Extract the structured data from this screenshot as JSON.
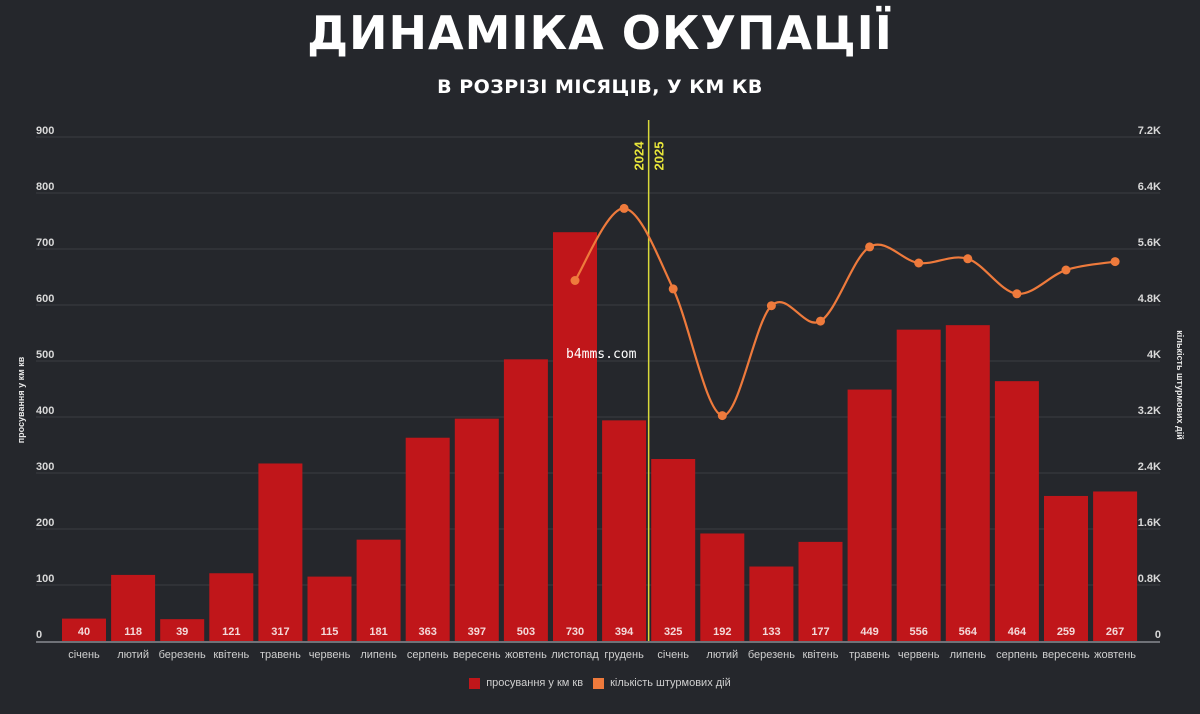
{
  "header": {
    "title": "ДИНАМІКА ОКУПАЦІЇ",
    "subtitle": "В РОЗРІЗІ МІСЯЦІВ, У КМ КВ"
  },
  "watermark": "b4mms.com",
  "legend": {
    "bars_label": "просування у км кв",
    "line_label": "кількість штурмових дій"
  },
  "colors": {
    "background": "#25272c",
    "bars": "#c0161a",
    "line": "#ee7a3c",
    "divider": "#d9d83a",
    "grid": "#3a3c42"
  },
  "chart_data": {
    "type": "bar+line",
    "title": "ДИНАМІКА ОКУПАЦІЇ",
    "subtitle": "В РОЗРІЗІ МІСЯЦІВ, У КМ КВ",
    "ylabel": "просування у км кв",
    "y2label": "кількість штурмових дій",
    "ylim": [
      0,
      900
    ],
    "y2lim": [
      0,
      7200
    ],
    "yticks": [
      "0",
      "100",
      "200",
      "300",
      "400",
      "500",
      "600",
      "700",
      "800",
      "900"
    ],
    "y2ticks": [
      "0",
      "0.8K",
      "1.6K",
      "2.4K",
      "3.2K",
      "4K",
      "4.8K",
      "5.6K",
      "6.4K",
      "7.2K"
    ],
    "grid": true,
    "legend_position": "bottom",
    "year_divider": {
      "after_index": 11,
      "left_label": "2024",
      "right_label": "2025"
    },
    "categories": [
      "січень",
      "лютий",
      "березень",
      "квітень",
      "травень",
      "червень",
      "липень",
      "серпень",
      "вересень",
      "жовтень",
      "листопад",
      "грудень",
      "січень",
      "лютий",
      "березень",
      "квітень",
      "травень",
      "червень",
      "липень",
      "серпень",
      "вересень",
      "жовтень"
    ],
    "series": [
      {
        "name": "просування у км кв",
        "type": "bar",
        "axis": "left",
        "values": [
          40,
          118,
          39,
          121,
          317,
          115,
          181,
          363,
          397,
          503,
          730,
          394,
          325,
          192,
          133,
          177,
          449,
          556,
          564,
          464,
          259,
          267
        ]
      },
      {
        "name": "кількість штурмових дій",
        "type": "line",
        "axis": "right",
        "values": [
          null,
          null,
          null,
          null,
          null,
          null,
          null,
          null,
          null,
          null,
          5150,
          6180,
          5030,
          3220,
          4790,
          4570,
          5630,
          5400,
          5460,
          4960,
          5300,
          5420
        ]
      }
    ]
  }
}
